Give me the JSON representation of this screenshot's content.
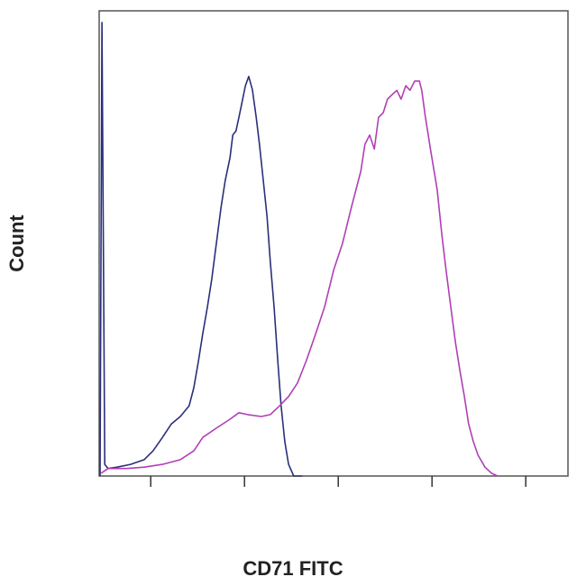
{
  "chart_data": {
    "type": "line",
    "xlabel": "CD71 FITC",
    "ylabel": "Count",
    "xlim": [
      0,
      100
    ],
    "ylim": [
      0,
      100
    ],
    "xticks": [
      11,
      31,
      51,
      71,
      91
    ],
    "series": [
      {
        "color": "#2a2f7a",
        "x": [
          0.2,
          0.6,
          1.2,
          1.9,
          3.8,
          6.7,
          9.6,
          11.5,
          13.5,
          15.4,
          17.3,
          19.2,
          20.2,
          21.2,
          22.1,
          23.1,
          24.0,
          25.0,
          26.0,
          26.9,
          27.9,
          28.5,
          29.2,
          29.8,
          30.4,
          31.2,
          31.9,
          32.7,
          33.5,
          34.2,
          35.0,
          35.8,
          36.5,
          37.3,
          38.1,
          38.8,
          39.6,
          40.4,
          41.5,
          43.3
        ],
        "values": [
          0,
          97.5,
          2.5,
          1.6,
          1.9,
          2.5,
          3.5,
          5.4,
          8.3,
          11.2,
          12.8,
          15.1,
          19.0,
          24.8,
          30.6,
          36.4,
          42.2,
          50.0,
          57.8,
          63.6,
          68.4,
          73.3,
          74.2,
          77.1,
          80.0,
          83.9,
          85.9,
          83.0,
          77.1,
          71.3,
          63.6,
          55.8,
          46.1,
          36.4,
          24.8,
          15.1,
          7.4,
          2.5,
          0,
          0
        ]
      },
      {
        "color": "#b03fb5",
        "x": [
          0.4,
          1.9,
          5.8,
          9.6,
          13.5,
          17.3,
          20.2,
          22.1,
          25.0,
          27.9,
          29.8,
          31.7,
          34.6,
          36.5,
          38.5,
          40.4,
          42.3,
          44.2,
          46.2,
          48.1,
          50.0,
          51.9,
          53.8,
          55.8,
          56.7,
          57.7,
          58.7,
          59.6,
          60.6,
          61.5,
          62.5,
          63.5,
          64.4,
          65.4,
          66.3,
          67.3,
          68.3,
          68.8,
          69.6,
          70.8,
          72.1,
          73.1,
          74.0,
          75.0,
          76.0,
          76.9,
          77.9,
          78.8,
          79.8,
          80.8,
          82.3,
          83.7,
          85.0
        ],
        "values": [
          0.6,
          1.6,
          1.6,
          1.9,
          2.5,
          3.5,
          5.4,
          8.3,
          10.3,
          12.2,
          13.6,
          13.2,
          12.8,
          13.2,
          15.1,
          17.1,
          20.0,
          24.8,
          30.6,
          36.4,
          44.2,
          50.0,
          57.8,
          65.5,
          71.3,
          73.3,
          70.3,
          77.1,
          78.1,
          81.0,
          82.0,
          82.9,
          81.0,
          83.9,
          82.9,
          84.9,
          84.9,
          82.9,
          77.1,
          69.4,
          61.6,
          51.9,
          44.2,
          36.4,
          28.7,
          22.9,
          17.1,
          11.2,
          7.4,
          4.5,
          1.9,
          0.6,
          0
        ]
      }
    ]
  }
}
